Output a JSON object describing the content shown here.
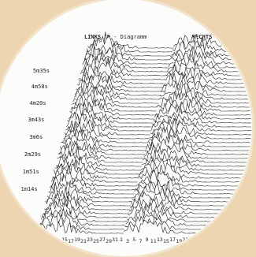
{
  "chart_data": {
    "type": "area",
    "title": "3D - Diagramm",
    "panels": [
      {
        "name": "LINKS",
        "channel_ticks": [
          "11",
          "13",
          "15",
          "17",
          "19",
          "21",
          "23",
          "25",
          "27",
          "29",
          "31"
        ]
      },
      {
        "name": "RECHTS",
        "channel_ticks": [
          "1",
          "3",
          "5",
          "7",
          "9",
          "11",
          "13",
          "15",
          "17",
          "19",
          "21",
          "23",
          "25",
          "27",
          "29",
          "31"
        ]
      }
    ],
    "time_labels": [
      "5m35s",
      "4m58s",
      "4m20s",
      "3m43s",
      "3m6s",
      "2m29s",
      "1m51s",
      "1m14s"
    ],
    "series_count": 48,
    "colors": {
      "ink": "#222222",
      "paper": "#fcfcfa",
      "background": "#ecd5b0"
    }
  }
}
